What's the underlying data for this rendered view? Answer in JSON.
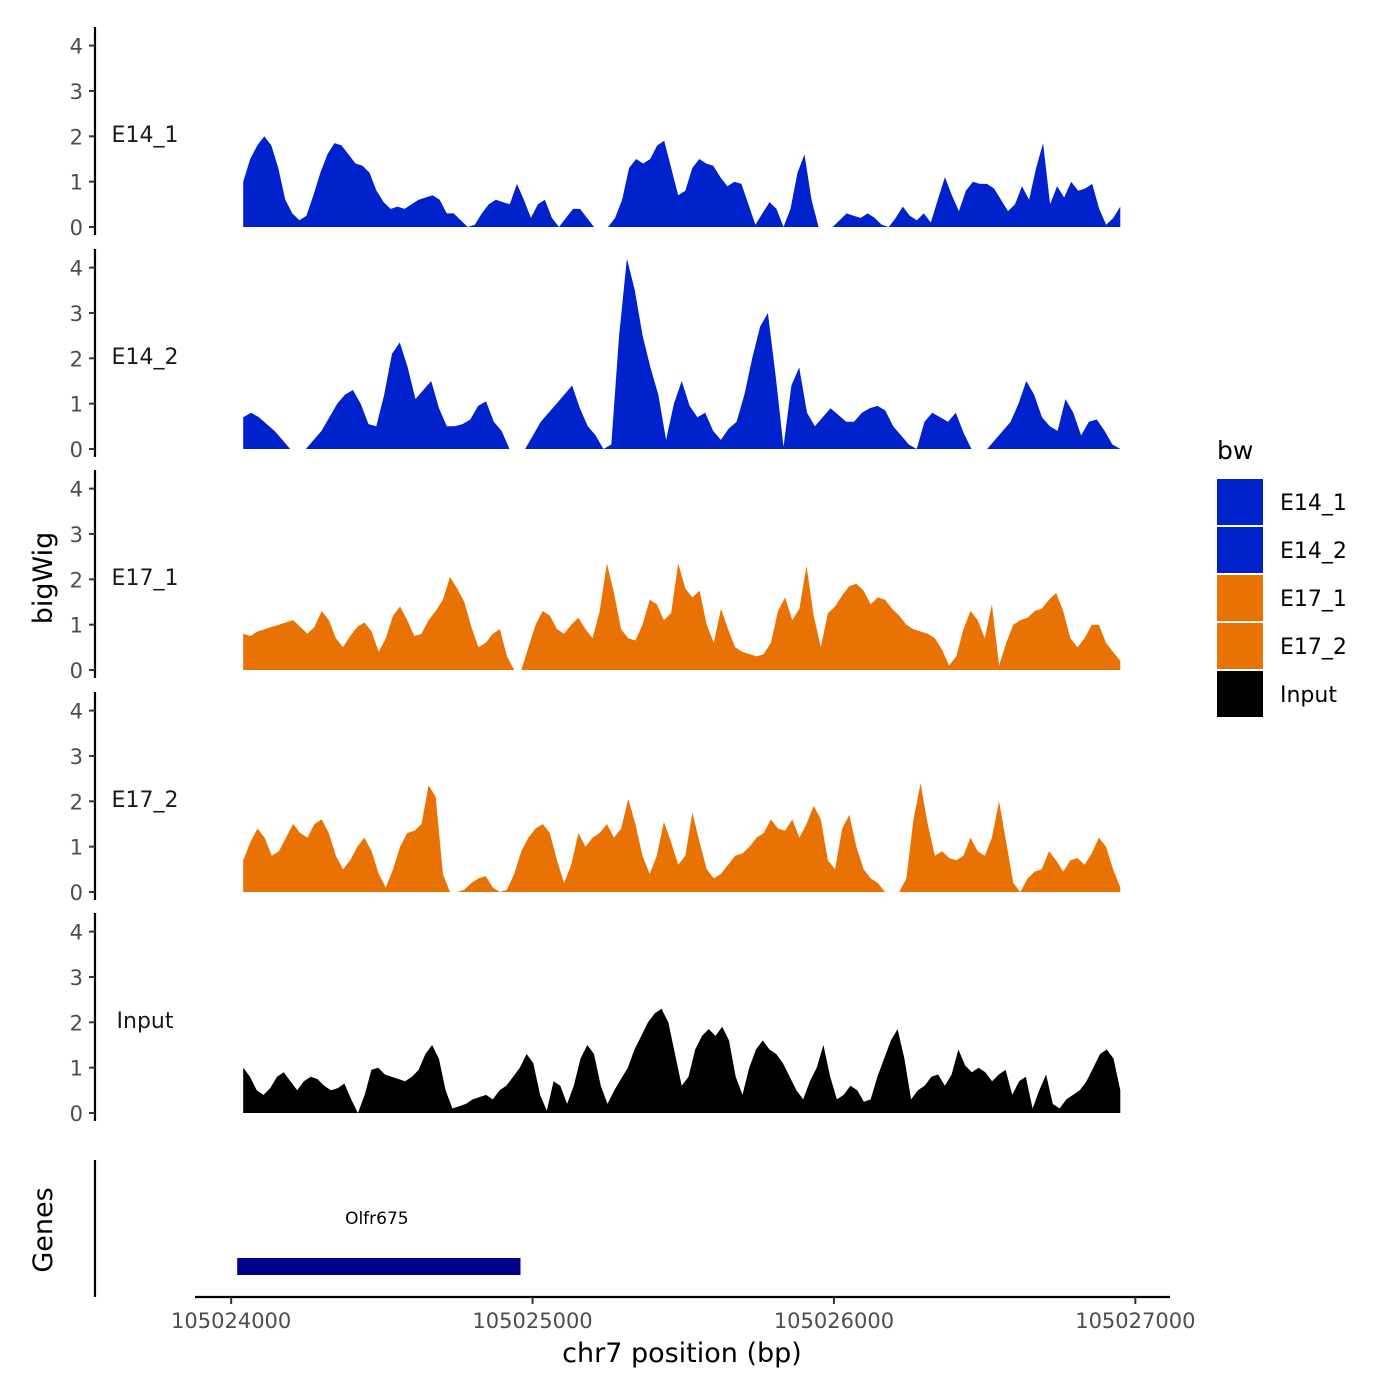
{
  "chart_data": {
    "type": "area",
    "title": "",
    "ylabel": "bigWig",
    "genes_label": "Genes",
    "xlabel": "chr7 position (bp)",
    "xlim": [
      105023880,
      105027115
    ],
    "x_ticks": [
      105024000,
      105025000,
      105026000,
      105027000
    ],
    "x_tick_labels": [
      "105024000",
      "105025000",
      "105026000",
      "105027000"
    ],
    "ylim": [
      0,
      4.3
    ],
    "y_ticks": [
      0,
      1,
      2,
      3,
      4
    ],
    "y_tick_labels": [
      "0",
      "1",
      "2",
      "3",
      "4"
    ],
    "legend": {
      "title": "bw",
      "position": "right",
      "entries": [
        {
          "label": "E14_1",
          "color": "#0022cc"
        },
        {
          "label": "E14_2",
          "color": "#0022cc"
        },
        {
          "label": "E17_1",
          "color": "#e87304"
        },
        {
          "label": "E17_2",
          "color": "#e87304"
        },
        {
          "label": "Input",
          "color": "#000000"
        }
      ]
    },
    "series": [
      {
        "name": "E14_1",
        "color": "#0022cc",
        "x_start": 105024040,
        "x_end": 105026950,
        "values": [
          1.0,
          1.5,
          1.8,
          2.0,
          1.8,
          1.3,
          0.6,
          0.3,
          0.15,
          0.25,
          0.7,
          1.2,
          1.6,
          1.85,
          1.8,
          1.6,
          1.4,
          1.35,
          1.2,
          0.8,
          0.55,
          0.4,
          0.45,
          0.4,
          0.5,
          0.6,
          0.65,
          0.7,
          0.6,
          0.3,
          0.3,
          0.15,
          0.0,
          0.05,
          0.3,
          0.5,
          0.6,
          0.55,
          0.5,
          0.95,
          0.6,
          0.2,
          0.5,
          0.6,
          0.2,
          0.0,
          0.2,
          0.4,
          0.4,
          0.2,
          0.0,
          0.0,
          0.0,
          0.2,
          0.6,
          1.3,
          1.5,
          1.4,
          1.5,
          1.8,
          1.9,
          1.3,
          0.7,
          0.8,
          1.3,
          1.5,
          1.4,
          1.35,
          1.1,
          0.9,
          1.0,
          0.95,
          0.5,
          0.05,
          0.3,
          0.55,
          0.4,
          0.0,
          0.4,
          1.2,
          1.6,
          0.6,
          0.0,
          0.0,
          0.0,
          0.15,
          0.3,
          0.25,
          0.2,
          0.3,
          0.2,
          0.05,
          0.0,
          0.2,
          0.45,
          0.25,
          0.15,
          0.3,
          0.1,
          0.6,
          1.1,
          0.7,
          0.35,
          0.8,
          1.0,
          0.95,
          0.95,
          0.85,
          0.6,
          0.35,
          0.5,
          0.9,
          0.6,
          1.3,
          1.85,
          0.5,
          0.9,
          0.65,
          1.0,
          0.8,
          0.85,
          0.95,
          0.4,
          0.05,
          0.2,
          0.45
        ]
      },
      {
        "name": "E14_2",
        "color": "#0022cc",
        "x_start": 105024040,
        "x_end": 105026950,
        "values": [
          0.7,
          0.8,
          0.7,
          0.55,
          0.4,
          0.2,
          0.0,
          0.0,
          0.0,
          0.2,
          0.4,
          0.7,
          1.0,
          1.2,
          1.3,
          1.0,
          0.55,
          0.5,
          1.2,
          2.1,
          2.35,
          1.8,
          1.1,
          1.3,
          1.5,
          0.9,
          0.5,
          0.5,
          0.55,
          0.65,
          0.95,
          1.05,
          0.6,
          0.4,
          0.0,
          0.0,
          0.0,
          0.3,
          0.6,
          0.8,
          1.0,
          1.2,
          1.4,
          0.9,
          0.5,
          0.3,
          0.0,
          0.1,
          2.5,
          4.2,
          3.5,
          2.5,
          1.8,
          1.2,
          0.2,
          1.0,
          1.5,
          0.95,
          0.7,
          0.8,
          0.4,
          0.2,
          0.45,
          0.6,
          1.2,
          2.0,
          2.7,
          3.0,
          1.6,
          0.05,
          1.4,
          1.8,
          0.8,
          0.5,
          0.7,
          0.9,
          0.75,
          0.6,
          0.6,
          0.8,
          0.9,
          0.95,
          0.85,
          0.5,
          0.3,
          0.1,
          0.0,
          0.6,
          0.8,
          0.7,
          0.6,
          0.8,
          0.35,
          0.0,
          0.0,
          0.0,
          0.2,
          0.4,
          0.6,
          1.0,
          1.5,
          1.2,
          0.7,
          0.5,
          0.4,
          1.1,
          0.8,
          0.3,
          0.6,
          0.65,
          0.4,
          0.1,
          0.0
        ]
      },
      {
        "name": "E17_1",
        "color": "#e87304",
        "x_start": 105024040,
        "x_end": 105026950,
        "values": [
          0.8,
          0.75,
          0.85,
          0.9,
          0.95,
          1.0,
          1.05,
          1.1,
          0.95,
          0.8,
          0.95,
          1.3,
          1.1,
          0.7,
          0.5,
          0.75,
          0.95,
          1.05,
          0.85,
          0.4,
          0.7,
          1.2,
          1.4,
          1.1,
          0.75,
          0.8,
          1.1,
          1.3,
          1.55,
          2.05,
          1.8,
          1.5,
          0.95,
          0.5,
          0.6,
          0.8,
          0.9,
          0.3,
          0.0,
          0.0,
          0.5,
          1.0,
          1.3,
          1.2,
          0.9,
          0.8,
          1.0,
          1.15,
          0.9,
          0.7,
          1.3,
          2.35,
          1.7,
          0.9,
          0.7,
          0.65,
          1.0,
          1.55,
          1.45,
          1.1,
          1.25,
          2.35,
          1.8,
          1.6,
          1.75,
          1.0,
          0.6,
          1.35,
          0.9,
          0.5,
          0.4,
          0.35,
          0.3,
          0.35,
          0.6,
          1.3,
          1.6,
          1.1,
          1.35,
          2.3,
          1.2,
          0.5,
          1.25,
          1.4,
          1.65,
          1.85,
          1.9,
          1.75,
          1.45,
          1.6,
          1.55,
          1.35,
          1.2,
          1.0,
          0.9,
          0.85,
          0.8,
          0.7,
          0.45,
          0.1,
          0.3,
          0.9,
          1.3,
          1.1,
          0.7,
          1.45,
          0.1,
          0.6,
          1.0,
          1.1,
          1.15,
          1.3,
          1.35,
          1.55,
          1.7,
          1.3,
          0.7,
          0.5,
          0.7,
          1.0,
          1.0,
          0.6,
          0.4,
          0.2
        ]
      },
      {
        "name": "E17_2",
        "color": "#e87304",
        "x_start": 105024040,
        "x_end": 105026950,
        "values": [
          0.7,
          1.1,
          1.4,
          1.2,
          0.8,
          0.9,
          1.2,
          1.5,
          1.3,
          1.2,
          1.5,
          1.6,
          1.3,
          0.8,
          0.5,
          0.7,
          1.0,
          1.2,
          0.9,
          0.4,
          0.1,
          0.5,
          1.0,
          1.3,
          1.35,
          1.5,
          2.35,
          2.1,
          0.4,
          0.0,
          0.0,
          0.05,
          0.2,
          0.3,
          0.35,
          0.1,
          0.0,
          0.05,
          0.4,
          0.9,
          1.2,
          1.4,
          1.5,
          1.3,
          0.7,
          0.2,
          0.6,
          1.3,
          1.0,
          1.2,
          1.3,
          1.5,
          1.2,
          1.4,
          2.05,
          1.5,
          0.8,
          0.4,
          0.8,
          1.55,
          1.1,
          0.6,
          0.8,
          1.75,
          1.1,
          0.5,
          0.3,
          0.4,
          0.6,
          0.8,
          0.85,
          1.0,
          1.2,
          1.3,
          1.6,
          1.4,
          1.35,
          1.6,
          1.2,
          1.5,
          1.9,
          1.6,
          0.7,
          0.5,
          1.4,
          1.7,
          1.0,
          0.5,
          0.3,
          0.2,
          0.0,
          0.0,
          0.0,
          0.3,
          1.6,
          2.4,
          1.5,
          0.8,
          0.9,
          0.75,
          0.7,
          0.8,
          1.2,
          0.9,
          0.8,
          1.2,
          2.0,
          1.1,
          0.2,
          0.0,
          0.3,
          0.45,
          0.5,
          0.9,
          0.7,
          0.45,
          0.7,
          0.75,
          0.6,
          0.85,
          1.2,
          1.0,
          0.5,
          0.1
        ]
      },
      {
        "name": "Input",
        "color": "#000000",
        "x_start": 105024040,
        "x_end": 105026950,
        "values": [
          1.0,
          0.8,
          0.5,
          0.4,
          0.55,
          0.8,
          0.9,
          0.7,
          0.5,
          0.7,
          0.8,
          0.75,
          0.6,
          0.5,
          0.55,
          0.65,
          0.3,
          0.0,
          0.4,
          0.95,
          1.0,
          0.85,
          0.8,
          0.75,
          0.7,
          0.8,
          0.95,
          1.3,
          1.5,
          1.2,
          0.5,
          0.1,
          0.15,
          0.2,
          0.3,
          0.35,
          0.4,
          0.3,
          0.5,
          0.6,
          0.8,
          1.0,
          1.3,
          1.1,
          0.4,
          0.05,
          0.7,
          0.6,
          0.2,
          0.6,
          1.2,
          1.5,
          1.3,
          0.6,
          0.2,
          0.5,
          0.75,
          1.0,
          1.4,
          1.7,
          2.0,
          2.2,
          2.3,
          2.0,
          1.3,
          0.6,
          0.8,
          1.4,
          1.7,
          1.85,
          1.7,
          1.9,
          1.6,
          0.8,
          0.4,
          1.0,
          1.4,
          1.6,
          1.4,
          1.3,
          1.1,
          0.8,
          0.5,
          0.3,
          0.7,
          1.0,
          1.5,
          0.8,
          0.3,
          0.4,
          0.6,
          0.5,
          0.25,
          0.3,
          0.8,
          1.2,
          1.6,
          1.85,
          1.2,
          0.3,
          0.5,
          0.6,
          0.8,
          0.85,
          0.6,
          0.85,
          1.4,
          1.05,
          0.9,
          1.0,
          0.9,
          0.7,
          0.85,
          0.95,
          0.4,
          0.7,
          0.8,
          0.1,
          0.5,
          0.85,
          0.2,
          0.1,
          0.3,
          0.4,
          0.5,
          0.7,
          1.0,
          1.3,
          1.4,
          1.2,
          0.5
        ]
      }
    ],
    "genes": [
      {
        "name": "Olfr675",
        "start": 105024020,
        "end": 105024960,
        "color": "#00008b"
      }
    ]
  }
}
